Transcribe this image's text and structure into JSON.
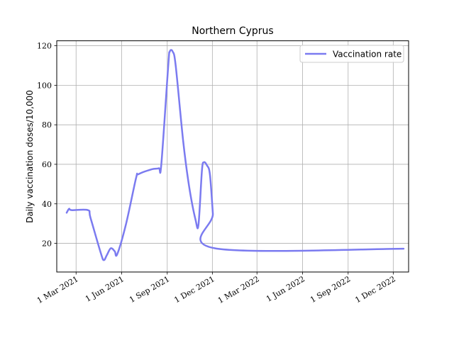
{
  "chart_data": {
    "type": "line",
    "title": "Northern Cyprus",
    "xlabel": "",
    "ylabel": "Daily vaccination doses/10,000",
    "xlim": [
      "2021-01-21",
      "2023-01-01"
    ],
    "ylim": [
      5.5,
      122.5
    ],
    "grid": true,
    "legend_position": "upper right",
    "x_ticks": [
      {
        "date": "2021-03-01",
        "label": "1 Mar 2021"
      },
      {
        "date": "2021-06-01",
        "label": "1 Jun 2021"
      },
      {
        "date": "2021-09-01",
        "label": "1 Sep 2021"
      },
      {
        "date": "2021-12-01",
        "label": "1 Dec 2021"
      },
      {
        "date": "2022-03-01",
        "label": "1 Mar 2022"
      },
      {
        "date": "2022-06-01",
        "label": "1 Jun 2022"
      },
      {
        "date": "2022-09-01",
        "label": "1 Sep 2022"
      },
      {
        "date": "2022-12-01",
        "label": "1 Dec 2022"
      }
    ],
    "y_ticks": [
      20,
      40,
      60,
      80,
      100,
      120
    ],
    "series": [
      {
        "name": "Vaccination rate",
        "color": "#7b7bf0",
        "points": [
          {
            "x": "2021-02-10",
            "y": 35.5
          },
          {
            "x": "2021-02-15",
            "y": 37.5
          },
          {
            "x": "2021-02-20",
            "y": 36.8
          },
          {
            "x": "2021-03-25",
            "y": 36.8
          },
          {
            "x": "2021-03-30",
            "y": 33.0
          },
          {
            "x": "2021-04-20",
            "y": 15.0
          },
          {
            "x": "2021-04-26",
            "y": 11.5
          },
          {
            "x": "2021-05-02",
            "y": 14.0
          },
          {
            "x": "2021-05-10",
            "y": 17.5
          },
          {
            "x": "2021-05-18",
            "y": 16.0
          },
          {
            "x": "2021-05-23",
            "y": 14.5
          },
          {
            "x": "2021-06-10",
            "y": 30.0
          },
          {
            "x": "2021-06-30",
            "y": 53.0
          },
          {
            "x": "2021-07-05",
            "y": 55.0
          },
          {
            "x": "2021-08-01",
            "y": 57.5
          },
          {
            "x": "2021-08-15",
            "y": 58.0
          },
          {
            "x": "2021-08-20",
            "y": 60.0
          },
          {
            "x": "2021-09-03",
            "y": 110.0
          },
          {
            "x": "2021-09-06",
            "y": 117.0
          },
          {
            "x": "2021-09-12",
            "y": 117.0
          },
          {
            "x": "2021-09-18",
            "y": 110.0
          },
          {
            "x": "2021-10-03",
            "y": 72.0
          },
          {
            "x": "2021-10-15",
            "y": 49.0
          },
          {
            "x": "2021-10-28",
            "y": 32.0
          },
          {
            "x": "2021-11-03",
            "y": 29.5
          },
          {
            "x": "2021-11-10",
            "y": 57.0
          },
          {
            "x": "2021-11-14",
            "y": 61.0
          },
          {
            "x": "2021-11-20",
            "y": 59.5
          },
          {
            "x": "2021-11-26",
            "y": 55.0
          },
          {
            "x": "2021-12-02",
            "y": 35.0
          },
          {
            "x": "2021-12-06",
            "y": 17.5
          },
          {
            "x": "2022-12-22",
            "y": 17.3
          }
        ]
      }
    ]
  }
}
